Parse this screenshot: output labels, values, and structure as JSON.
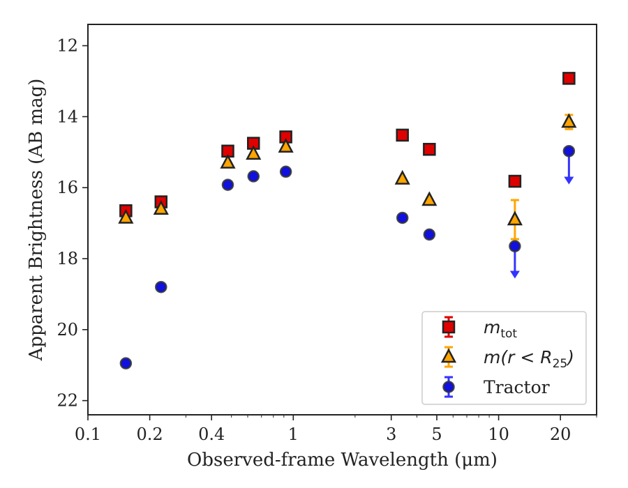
{
  "chart_data": {
    "type": "scatter",
    "title": "",
    "xlabel": "Observed-frame Wavelength (μm)",
    "ylabel": "Apparent Brightness (AB mag)",
    "xscale": "log",
    "xlim": [
      0.1,
      30
    ],
    "ylim": [
      22.4,
      11.4
    ],
    "y_inverted": true,
    "grid": false,
    "legend_position": "bottom-right",
    "x_ticks": [
      {
        "value": 0.1,
        "label": "0.1"
      },
      {
        "value": 0.2,
        "label": "0.2"
      },
      {
        "value": 0.4,
        "label": "0.4"
      },
      {
        "value": 1,
        "label": "1"
      },
      {
        "value": 3,
        "label": "3"
      },
      {
        "value": 5,
        "label": "5"
      },
      {
        "value": 10,
        "label": "10"
      },
      {
        "value": 20,
        "label": "20"
      }
    ],
    "y_ticks": [
      {
        "value": 12,
        "label": "12"
      },
      {
        "value": 14,
        "label": "14"
      },
      {
        "value": 16,
        "label": "16"
      },
      {
        "value": 18,
        "label": "18"
      },
      {
        "value": 20,
        "label": "20"
      },
      {
        "value": 22,
        "label": "22"
      }
    ],
    "series": [
      {
        "name": "m_tot",
        "legend_main": "m",
        "legend_sub": "tot",
        "marker": "square",
        "color": "#e00000",
        "err_color": "#e00000",
        "points": [
          {
            "x": 0.153,
            "y": 16.65,
            "err": 0.05
          },
          {
            "x": 0.227,
            "y": 16.4,
            "err": 0.05
          },
          {
            "x": 0.48,
            "y": 14.97,
            "err": 0.05
          },
          {
            "x": 0.64,
            "y": 14.75,
            "err": 0.05
          },
          {
            "x": 0.92,
            "y": 14.57,
            "err": 0.05
          },
          {
            "x": 3.4,
            "y": 14.52,
            "err": 0.05
          },
          {
            "x": 4.6,
            "y": 14.92,
            "err": 0.05
          },
          {
            "x": 12.0,
            "y": 15.82,
            "err": 0.05
          },
          {
            "x": 22.0,
            "y": 12.92,
            "err": 0.05
          }
        ]
      },
      {
        "name": "m(r < R25)",
        "legend_main": "m(r < R",
        "legend_sub": "25",
        "legend_tail": ")",
        "marker": "triangle",
        "color": "#ffa500",
        "err_color": "#ffa500",
        "points": [
          {
            "x": 0.153,
            "y": 16.85,
            "err": 0.05
          },
          {
            "x": 0.227,
            "y": 16.6,
            "err": 0.05
          },
          {
            "x": 0.48,
            "y": 15.3,
            "err": 0.05
          },
          {
            "x": 0.64,
            "y": 15.05,
            "err": 0.05
          },
          {
            "x": 0.92,
            "y": 14.85,
            "err": 0.05
          },
          {
            "x": 3.4,
            "y": 15.75,
            "err": 0.05
          },
          {
            "x": 4.6,
            "y": 16.35,
            "err": 0.05
          },
          {
            "x": 12.0,
            "y": 16.9,
            "err": 0.55
          },
          {
            "x": 22.0,
            "y": 14.15,
            "err": 0.2
          }
        ]
      },
      {
        "name": "Tractor",
        "marker": "circle",
        "color": "#1010e0",
        "err_color": "#3333ff",
        "points": [
          {
            "x": 0.153,
            "y": 20.95,
            "err": 0.05
          },
          {
            "x": 0.227,
            "y": 18.8,
            "err": 0.05
          },
          {
            "x": 0.48,
            "y": 15.92,
            "err": 0.05
          },
          {
            "x": 0.64,
            "y": 15.68,
            "err": 0.05
          },
          {
            "x": 0.92,
            "y": 15.55,
            "err": 0.05
          },
          {
            "x": 3.4,
            "y": 16.85,
            "err": 0.05
          },
          {
            "x": 4.6,
            "y": 17.32,
            "err": 0.05
          },
          {
            "x": 12.0,
            "y": 17.65,
            "err": 0.05,
            "upper_limit": true,
            "arrow_to": 18.5
          },
          {
            "x": 22.0,
            "y": 14.97,
            "err": 0.05,
            "upper_limit": true,
            "arrow_to": 15.85
          }
        ]
      }
    ]
  }
}
